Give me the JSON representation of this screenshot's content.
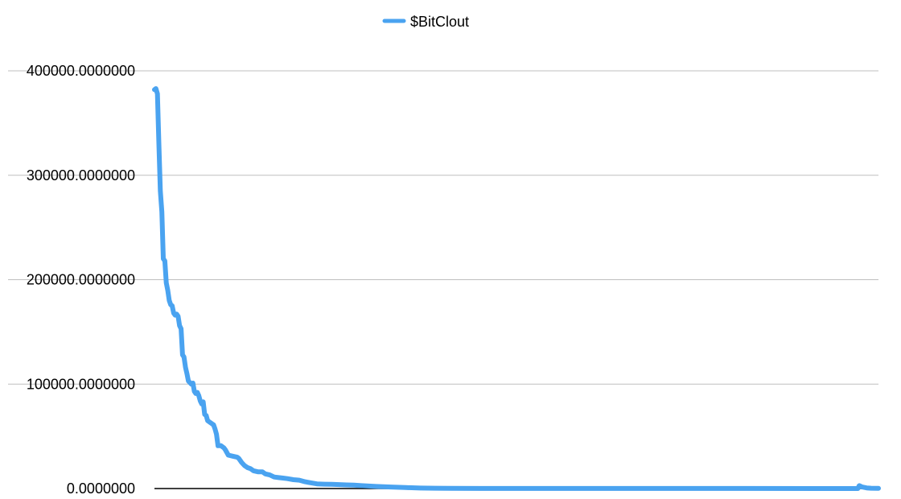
{
  "chart_data": {
    "type": "line",
    "title": "",
    "xlabel": "",
    "ylabel": "",
    "ylim": [
      0,
      400000
    ],
    "xlim": [
      0,
      490
    ],
    "y_ticks": [
      {
        "value": 0,
        "label": "0.0000000"
      },
      {
        "value": 100000,
        "label": "100000.0000000"
      },
      {
        "value": 200000,
        "label": "200000.0000000"
      },
      {
        "value": 300000,
        "label": "300000.0000000"
      },
      {
        "value": 400000,
        "label": "400000.0000000"
      }
    ],
    "grid": true,
    "legend": "top-center",
    "series": [
      {
        "name": "$BitClout",
        "color": "#4aa3f0",
        "points": [
          [
            0,
            382000
          ],
          [
            1,
            383000
          ],
          [
            2,
            378000
          ],
          [
            3,
            330000
          ],
          [
            4,
            285000
          ],
          [
            5,
            265000
          ],
          [
            6,
            220000
          ],
          [
            7,
            218000
          ],
          [
            8,
            197000
          ],
          [
            9,
            190000
          ],
          [
            10,
            180000
          ],
          [
            11,
            176000
          ],
          [
            12,
            175000
          ],
          [
            13,
            168000
          ],
          [
            14,
            166000
          ],
          [
            15,
            167000
          ],
          [
            16,
            165000
          ],
          [
            17,
            156000
          ],
          [
            18,
            153000
          ],
          [
            19,
            128000
          ],
          [
            20,
            126000
          ],
          [
            21,
            116000
          ],
          [
            22,
            110000
          ],
          [
            23,
            103000
          ],
          [
            25,
            100000
          ],
          [
            26,
            101000
          ],
          [
            27,
            93000
          ],
          [
            28,
            91000
          ],
          [
            29,
            92000
          ],
          [
            30,
            89000
          ],
          [
            31,
            84000
          ],
          [
            32,
            81000
          ],
          [
            33,
            83000
          ],
          [
            34,
            71000
          ],
          [
            35,
            70000
          ],
          [
            36,
            65000
          ],
          [
            38,
            63000
          ],
          [
            39,
            62000
          ],
          [
            40,
            61000
          ],
          [
            41,
            57000
          ],
          [
            42,
            52000
          ],
          [
            43,
            41000
          ],
          [
            45,
            41000
          ],
          [
            47,
            39000
          ],
          [
            48,
            37000
          ],
          [
            50,
            32000
          ],
          [
            53,
            31000
          ],
          [
            56,
            30000
          ],
          [
            57,
            29000
          ],
          [
            59,
            25000
          ],
          [
            61,
            22000
          ],
          [
            63,
            20000
          ],
          [
            65,
            19000
          ],
          [
            67,
            17000
          ],
          [
            70,
            16000
          ],
          [
            73,
            16000
          ],
          [
            75,
            14000
          ],
          [
            78,
            13000
          ],
          [
            81,
            11000
          ],
          [
            84,
            10500
          ],
          [
            87,
            10000
          ],
          [
            90,
            9500
          ],
          [
            94,
            8500
          ],
          [
            98,
            8000
          ],
          [
            102,
            6500
          ],
          [
            106,
            5500
          ],
          [
            110,
            4500
          ],
          [
            115,
            4200
          ],
          [
            120,
            4000
          ],
          [
            125,
            3800
          ],
          [
            130,
            3500
          ],
          [
            135,
            3200
          ],
          [
            140,
            2800
          ],
          [
            145,
            2400
          ],
          [
            150,
            2000
          ],
          [
            160,
            1500
          ],
          [
            170,
            900
          ],
          [
            180,
            500
          ],
          [
            190,
            300
          ],
          [
            200,
            200
          ],
          [
            220,
            100
          ],
          [
            250,
            80
          ],
          [
            300,
            60
          ],
          [
            350,
            50
          ],
          [
            400,
            40
          ],
          [
            450,
            30
          ],
          [
            476,
            30
          ],
          [
            477,
            2800
          ],
          [
            479,
            1500
          ],
          [
            482,
            600
          ],
          [
            485,
            300
          ],
          [
            490,
            200
          ]
        ]
      }
    ]
  }
}
